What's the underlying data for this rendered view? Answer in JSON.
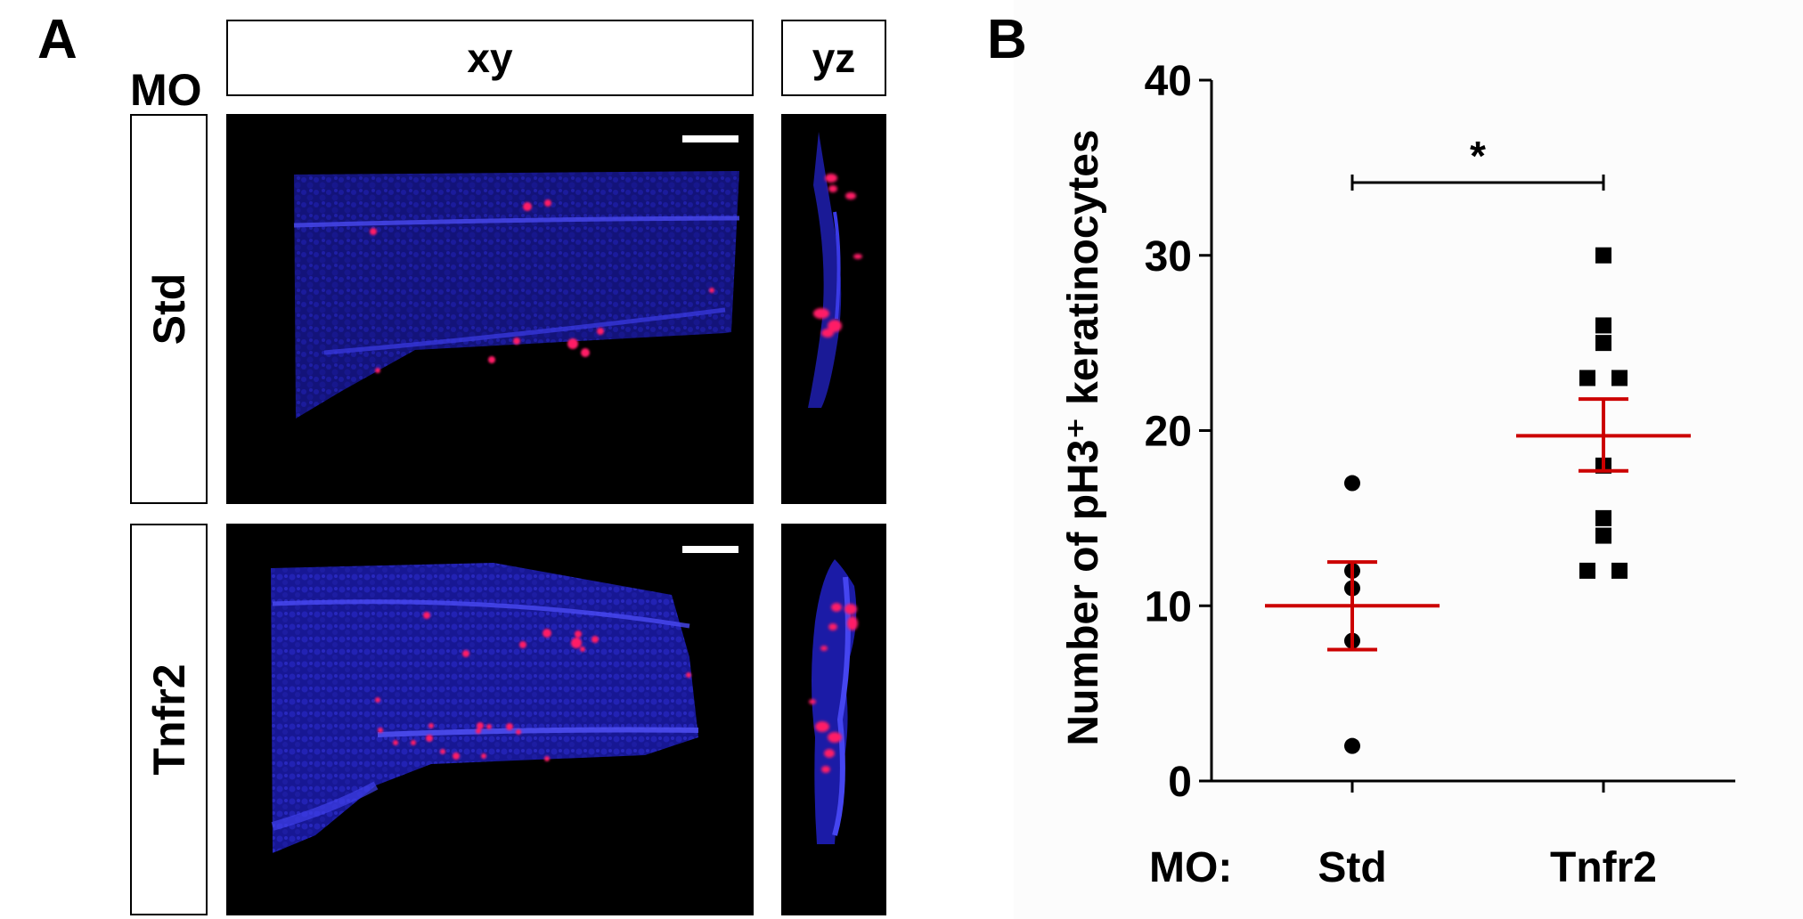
{
  "panel_a": {
    "letter": "A",
    "mo_label": "MO",
    "headers": [
      "xy",
      "yz"
    ],
    "rows": [
      "Std",
      "Tnfr2"
    ]
  },
  "panel_b": {
    "letter": "B",
    "group_prefix": "MO:"
  },
  "colors": {
    "nuclei": "#1a1acc",
    "ph3_signal": "#ff1a66",
    "mean_sem": "#cc0000",
    "points": "#000000"
  },
  "chart_data": {
    "type": "scatter",
    "title": "",
    "xlabel": "",
    "ylabel": "Number of pH3⁺ keratinocytes",
    "ylim": [
      0,
      40
    ],
    "yticks": [
      0,
      10,
      20,
      30,
      40
    ],
    "grid": false,
    "legend": "none",
    "categories": [
      "Std",
      "Tnfr2"
    ],
    "series": [
      {
        "category": "Std",
        "marker": "circle",
        "values": [
          17,
          12,
          11,
          8,
          2
        ],
        "mean": 10,
        "sem_upper": 12.5,
        "sem_lower": 7.5
      },
      {
        "category": "Tnfr2",
        "marker": "square",
        "values": [
          30,
          26,
          25,
          23,
          23,
          18,
          15,
          14,
          12,
          12
        ],
        "mean": 19.7,
        "sem_upper": 21.8,
        "sem_lower": 17.7
      }
    ],
    "annotations": [
      {
        "text": "*",
        "between": [
          "Std",
          "Tnfr2"
        ],
        "type": "significance-bracket"
      }
    ]
  }
}
